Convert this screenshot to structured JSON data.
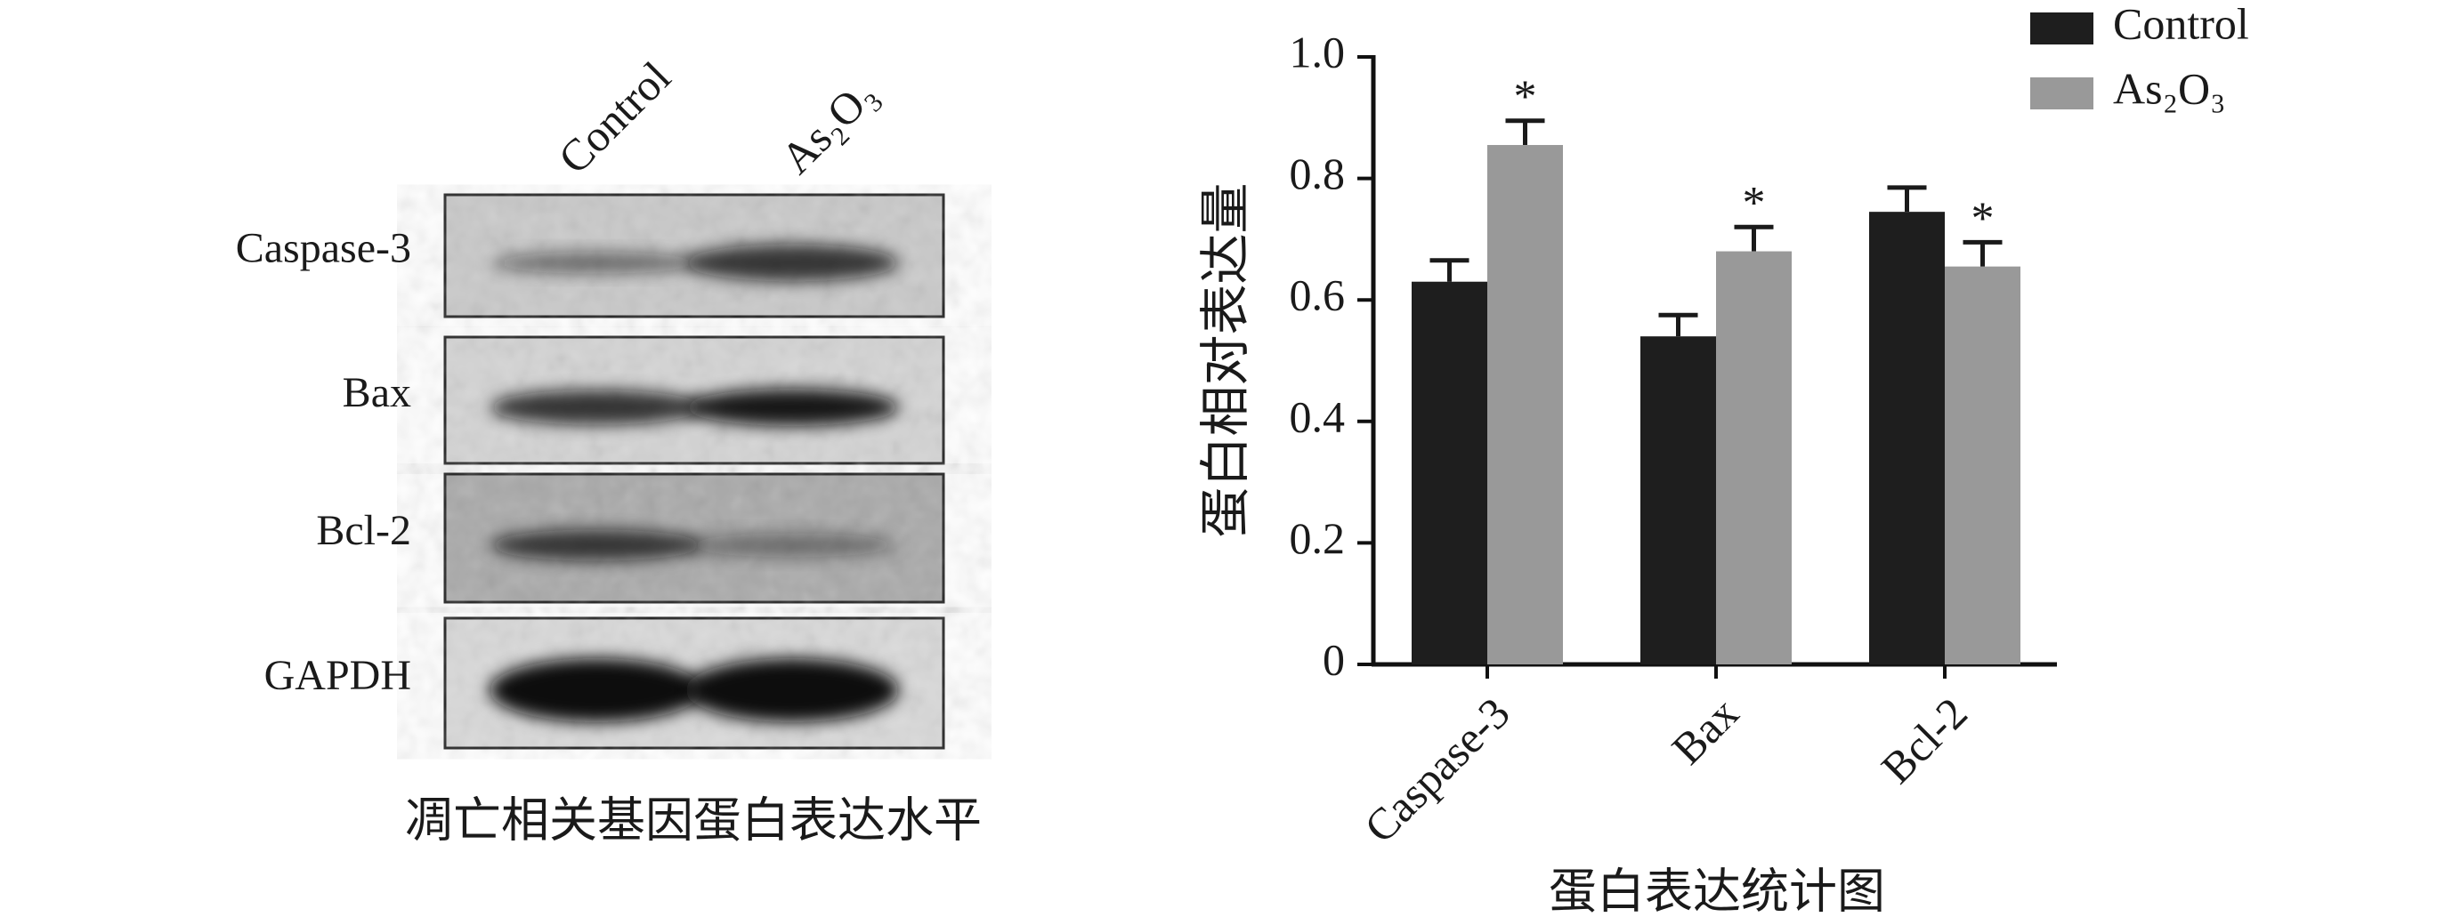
{
  "blot": {
    "lanes": [
      "Control",
      "As₂O₃"
    ],
    "rows": [
      "Caspase-3",
      "Bax",
      "Bcl-2",
      "GAPDH"
    ],
    "caption": "凋亡相关基因蛋白表达水平"
  },
  "chart_data": {
    "type": "bar",
    "ylabel": "蛋白相对表达量",
    "caption": "蛋白表达统计图",
    "categories": [
      "Caspase-3",
      "Bax",
      "Bcl-2"
    ],
    "series": [
      {
        "name": "Control",
        "color": "#1e1e1e",
        "values": [
          0.63,
          0.54,
          0.745
        ],
        "errors": [
          0.035,
          0.035,
          0.04
        ]
      },
      {
        "name": "As₂O₃",
        "color": "#999999",
        "values": [
          0.855,
          0.68,
          0.655
        ],
        "errors": [
          0.04,
          0.04,
          0.04
        ],
        "labels": [
          "*",
          "*",
          "*"
        ]
      }
    ],
    "ylim": [
      0,
      1
    ],
    "yticks": [
      0,
      0.2,
      0.4,
      0.6,
      0.8,
      {
        "value": 1,
        "label": "1.0"
      }
    ],
    "legend": "top-right"
  }
}
